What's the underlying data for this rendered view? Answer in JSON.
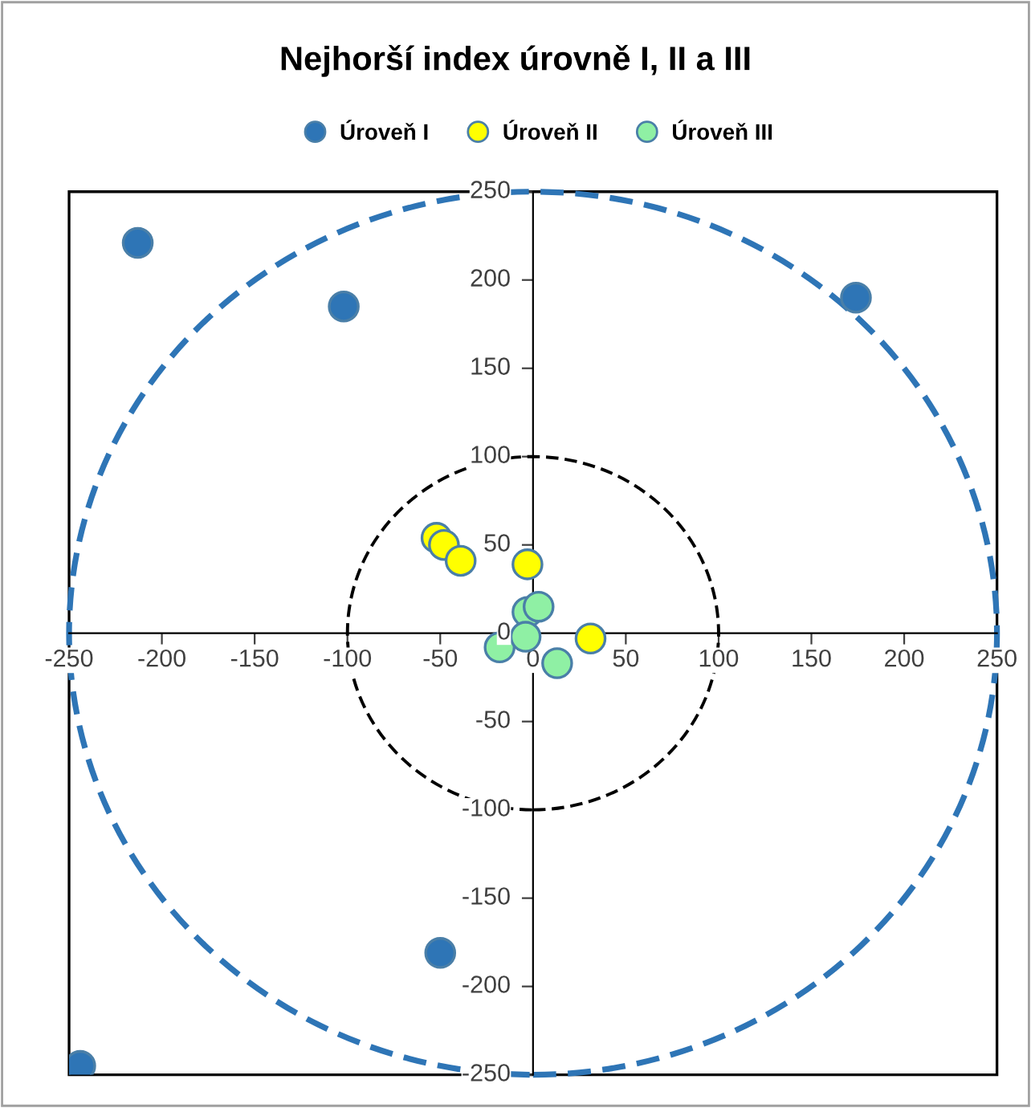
{
  "chart_data": {
    "type": "scatter",
    "title": "Nejhorší index úrovně I, II a III",
    "xlim": [
      -250,
      250
    ],
    "ylim": [
      -250,
      250
    ],
    "xticks": [
      -250,
      -200,
      -150,
      -100,
      -50,
      0,
      50,
      100,
      150,
      200,
      250
    ],
    "yticks": [
      -250,
      -200,
      -150,
      -100,
      -50,
      0,
      50,
      100,
      150,
      200,
      250
    ],
    "grid": false,
    "legend": "top",
    "marker": "circle",
    "series": [
      {
        "name": "Úroveň I",
        "color": "#2e75b6",
        "x": [
          -213,
          -102,
          174,
          -50,
          -244
        ],
        "values": [
          221,
          185,
          190,
          -181,
          -245
        ]
      },
      {
        "name": "Úroveň II",
        "color": "#ffff00",
        "x": [
          -52,
          -48,
          -39,
          -3,
          31
        ],
        "values": [
          54,
          50,
          41,
          39,
          -3
        ]
      },
      {
        "name": "Úroveň III",
        "color": "#8ff0a4",
        "x": [
          -3,
          3,
          -18,
          -4,
          13
        ],
        "values": [
          12,
          15,
          -8,
          -2,
          -17
        ]
      }
    ]
  }
}
